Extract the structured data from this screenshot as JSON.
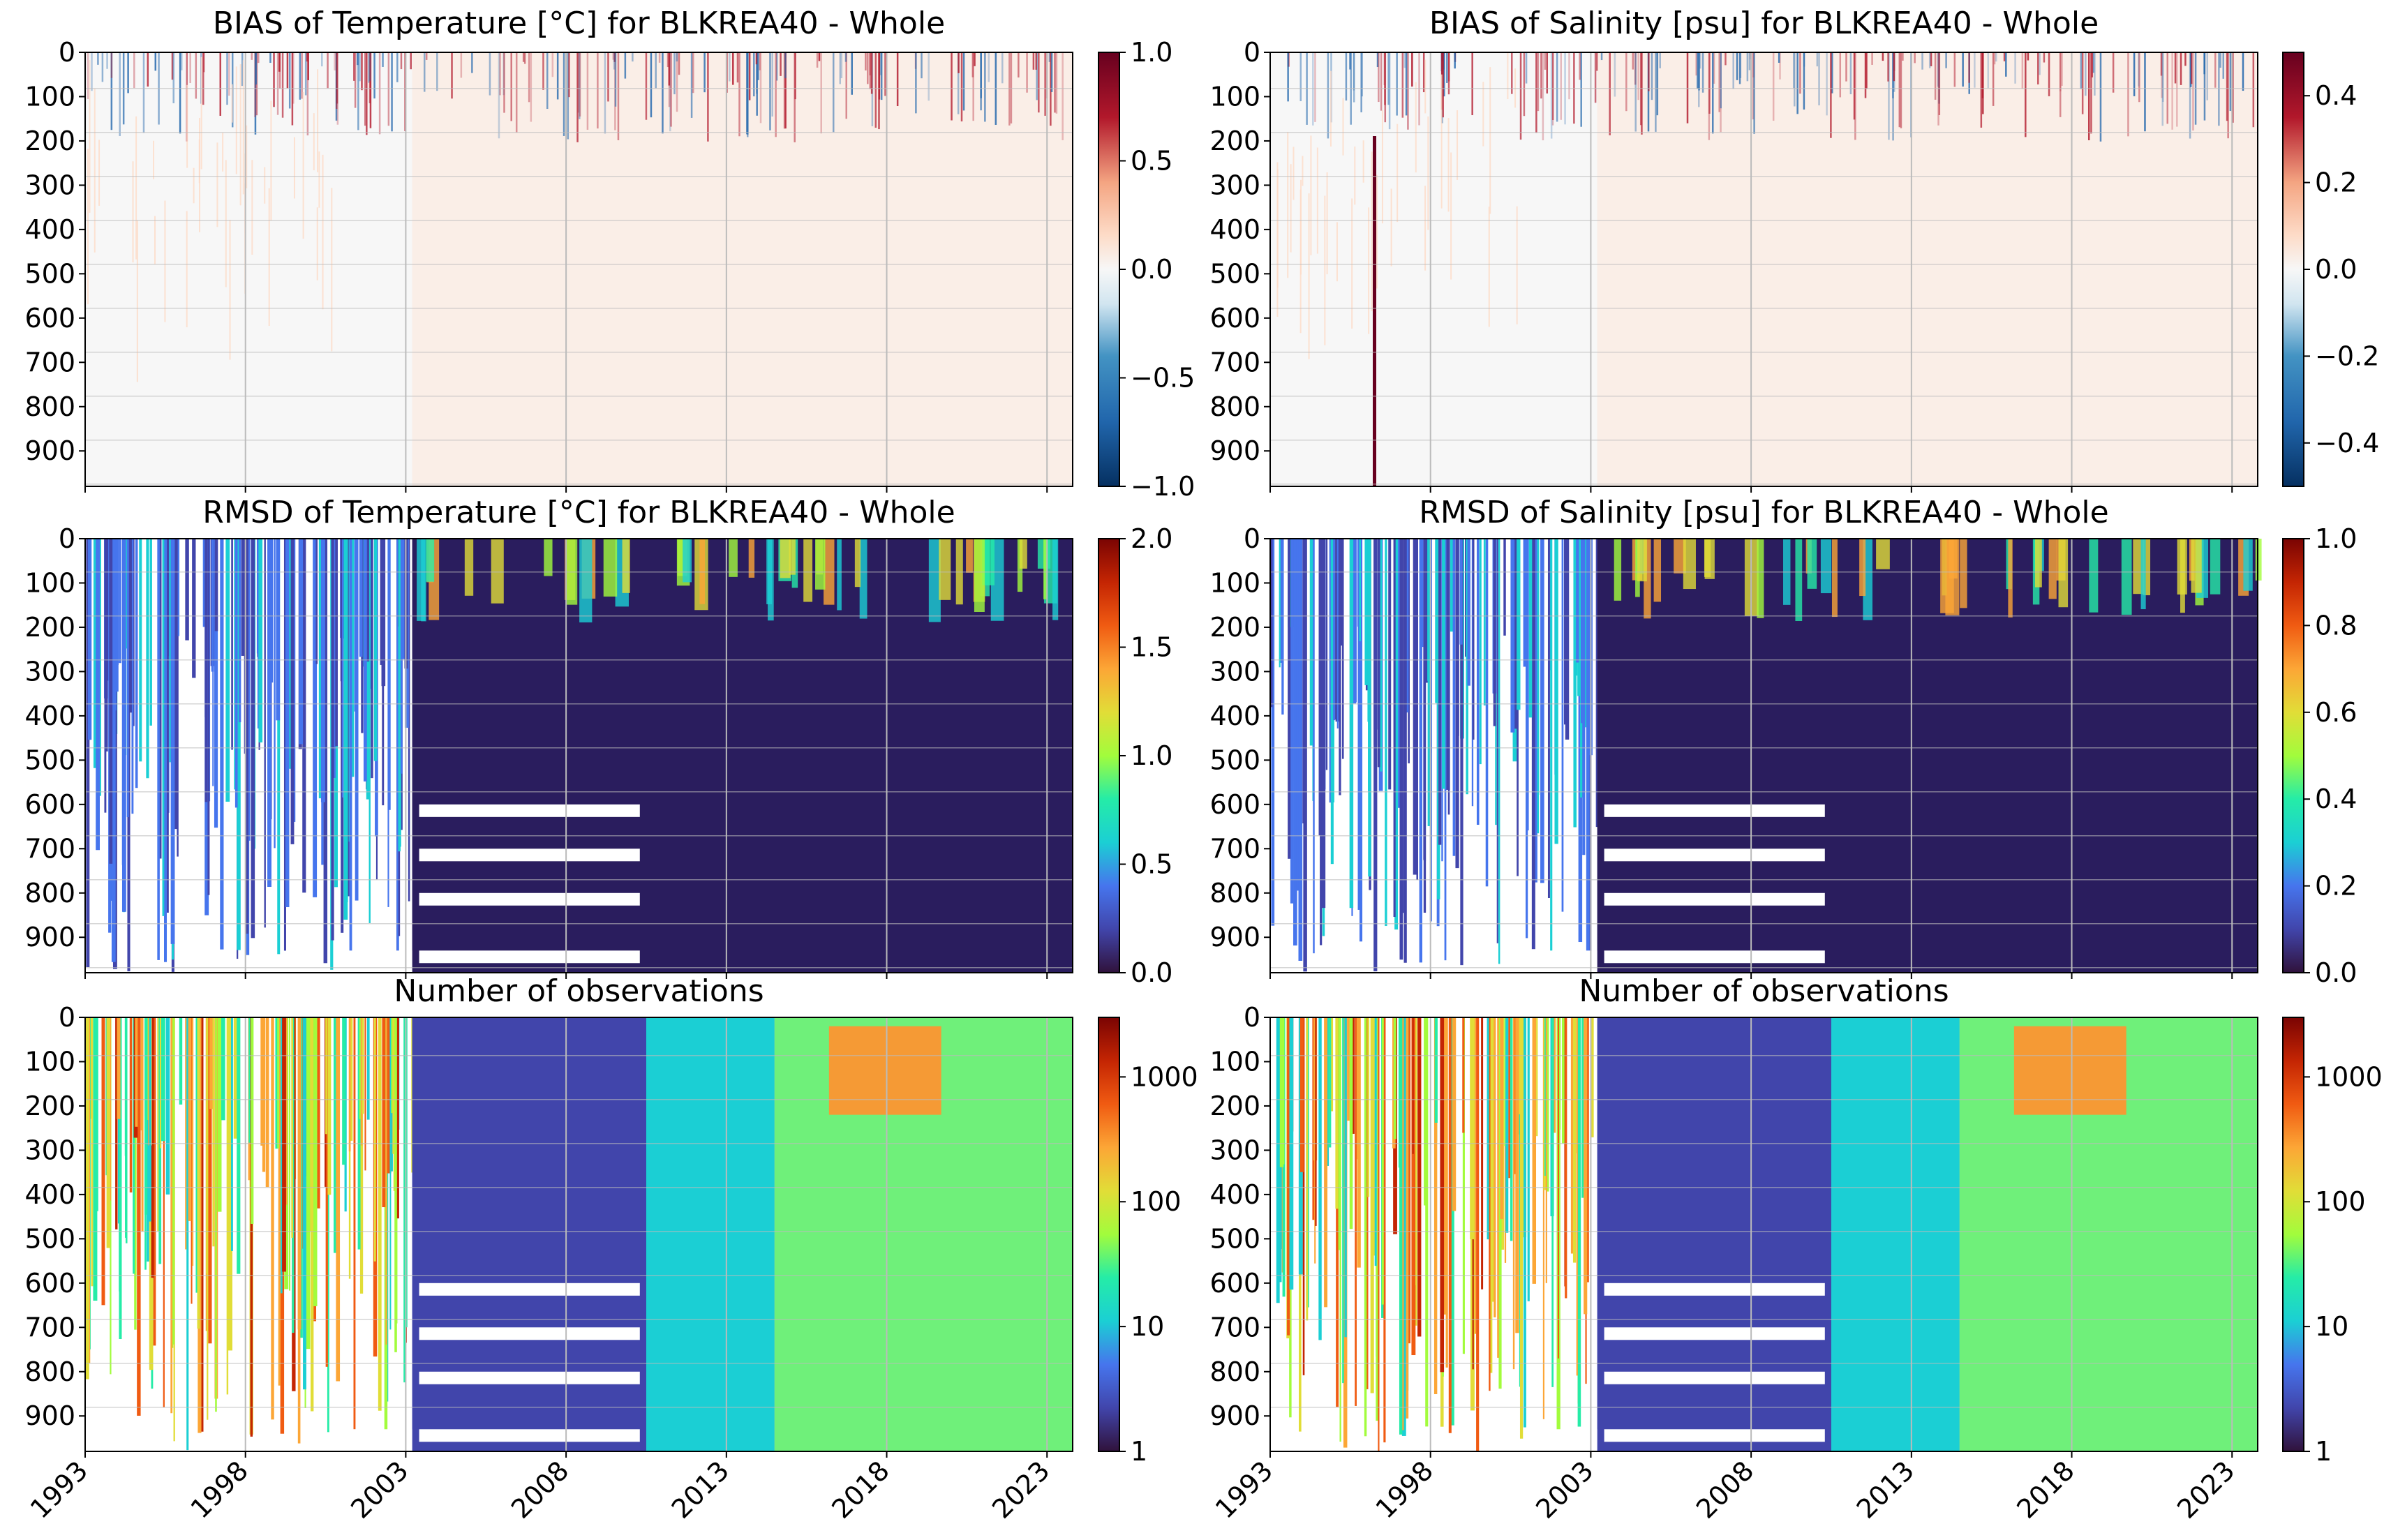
{
  "figure": {
    "description_rows": 3,
    "description_cols": 2
  },
  "chart_data": [
    {
      "type": "heatmap",
      "id": "bias-temp",
      "title": "BIAS of Temperature [°C] for BLKREA40 - Whole",
      "colormap": "RdBu_r",
      "ylim": [
        980,
        0
      ],
      "yticks": [
        0,
        100,
        200,
        300,
        400,
        500,
        600,
        700,
        800,
        900
      ],
      "xlim": [
        1993,
        2023.8
      ],
      "xticks": [
        "1993",
        "1998",
        "2003",
        "2008",
        "2013",
        "2018",
        "2023"
      ],
      "show_xtick_labels": false,
      "colorbar": {
        "min": -1.0,
        "max": 1.0,
        "scale": "linear",
        "ticks": [
          "−1.0",
          "−0.5",
          "0.0",
          "0.5",
          "1.0"
        ]
      },
      "values_note": "bias near 0 with slight positive (~0.1) at depth; surface variability ±1"
    },
    {
      "type": "heatmap",
      "id": "bias-sal",
      "title": "BIAS of Salinity [psu] for BLKREA40 - Whole",
      "colormap": "RdBu_r",
      "ylim": [
        980,
        0
      ],
      "yticks": [
        0,
        100,
        200,
        300,
        400,
        500,
        600,
        700,
        800,
        900
      ],
      "xlim": [
        1993,
        2023.8
      ],
      "xticks": [
        "1993",
        "1998",
        "2003",
        "2008",
        "2013",
        "2018",
        "2023"
      ],
      "show_xtick_labels": false,
      "colorbar": {
        "min": -0.5,
        "max": 0.5,
        "scale": "linear",
        "ticks": [
          "−0.4",
          "−0.2",
          "0.0",
          "0.2",
          "0.4"
        ]
      },
      "values_note": "bias near 0; positive streaks near 50–150 m"
    },
    {
      "type": "heatmap",
      "id": "rmsd-temp",
      "title": "RMSD of Temperature [°C] for BLKREA40 - Whole",
      "colormap": "turbo",
      "ylim": [
        980,
        0
      ],
      "yticks": [
        0,
        100,
        200,
        300,
        400,
        500,
        600,
        700,
        800,
        900
      ],
      "xlim": [
        1993,
        2023.8
      ],
      "xticks": [
        "1993",
        "1998",
        "2003",
        "2008",
        "2013",
        "2018",
        "2023"
      ],
      "show_xtick_labels": false,
      "colorbar": {
        "min": 0.0,
        "max": 2.0,
        "scale": "linear",
        "ticks": [
          "0.0",
          "0.5",
          "1.0",
          "1.5",
          "2.0"
        ]
      },
      "values_note": "low RMSD (~0.05) at depth, seasonal surface peaks up to ~2"
    },
    {
      "type": "heatmap",
      "id": "rmsd-sal",
      "title": "RMSD of Salinity [psu] for BLKREA40 - Whole",
      "colormap": "turbo",
      "ylim": [
        980,
        0
      ],
      "yticks": [
        0,
        100,
        200,
        300,
        400,
        500,
        600,
        700,
        800,
        900
      ],
      "xlim": [
        1993,
        2023.8
      ],
      "xticks": [
        "1993",
        "1998",
        "2003",
        "2008",
        "2013",
        "2018",
        "2023"
      ],
      "show_xtick_labels": false,
      "colorbar": {
        "min": 0.0,
        "max": 1.0,
        "scale": "linear",
        "ticks": [
          "0.0",
          "0.2",
          "0.4",
          "0.6",
          "0.8",
          "1.0"
        ]
      },
      "values_note": "low RMSD at depth, higher near 50–150 m"
    },
    {
      "type": "heatmap",
      "id": "nobs-temp",
      "title": "Number of observations",
      "colormap": "turbo",
      "ylim": [
        980,
        0
      ],
      "yticks": [
        0,
        100,
        200,
        300,
        400,
        500,
        600,
        700,
        800,
        900
      ],
      "xlim": [
        1993,
        2023.8
      ],
      "xticks": [
        "1993",
        "1998",
        "2003",
        "2008",
        "2013",
        "2018",
        "2023"
      ],
      "show_xtick_labels": true,
      "colorbar": {
        "min": 1,
        "max": 3000,
        "scale": "log",
        "ticks": [
          "1",
          "10",
          "100",
          "1000"
        ]
      },
      "values_note": "sparse pre-2003, ~5–30 2003–2014, ~100–300 after 2014, peak ~1000 2016–2019 at 50–200 m"
    },
    {
      "type": "heatmap",
      "id": "nobs-sal",
      "title": "Number of observations",
      "colormap": "turbo",
      "ylim": [
        980,
        0
      ],
      "yticks": [
        0,
        100,
        200,
        300,
        400,
        500,
        600,
        700,
        800,
        900
      ],
      "xlim": [
        1993,
        2023.8
      ],
      "xticks": [
        "1993",
        "1998",
        "2003",
        "2008",
        "2013",
        "2018",
        "2023"
      ],
      "show_xtick_labels": true,
      "colorbar": {
        "min": 1,
        "max": 3000,
        "scale": "log",
        "ticks": [
          "1",
          "10",
          "100",
          "1000"
        ]
      },
      "values_note": "same structure as temperature observation counts"
    }
  ]
}
